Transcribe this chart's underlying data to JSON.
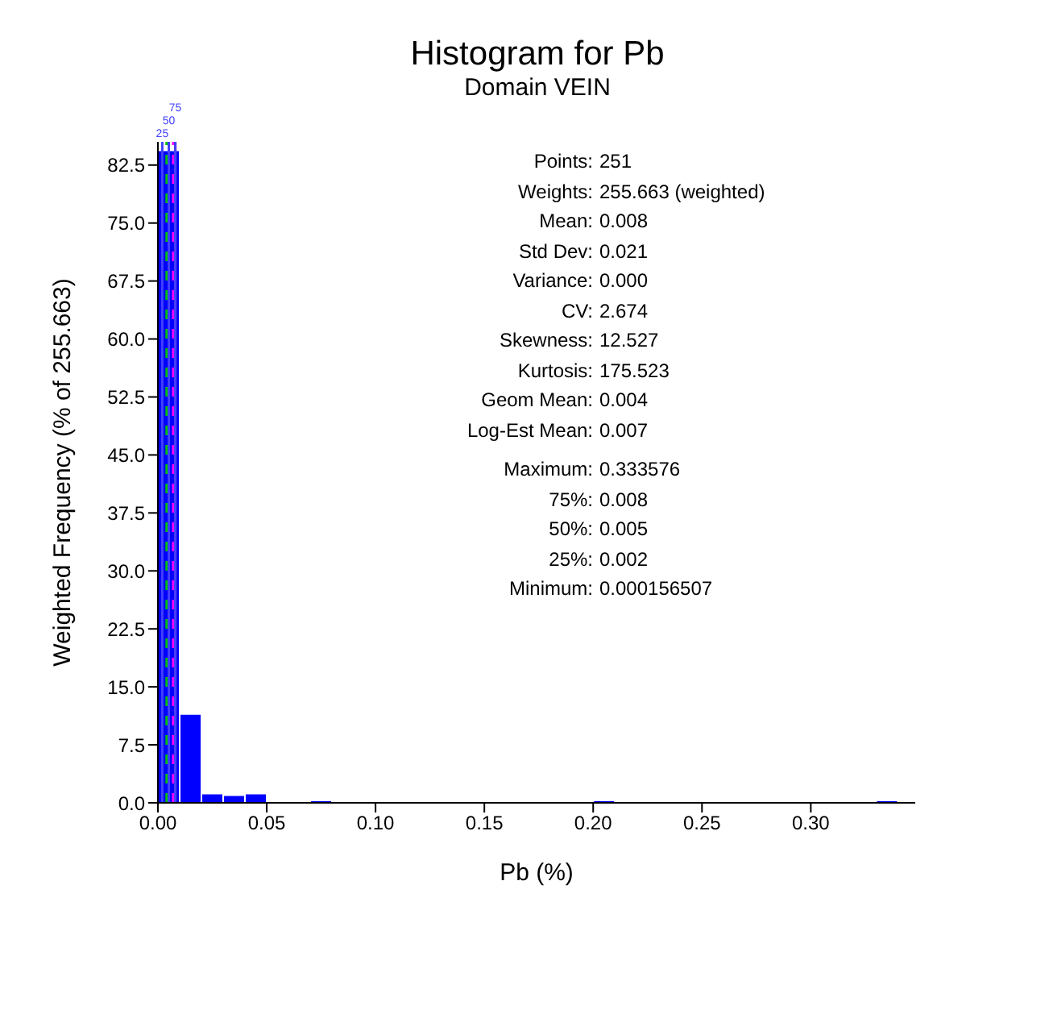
{
  "chart_data": {
    "type": "histogram",
    "title": "Histogram for Pb",
    "subtitle": "Domain VEIN",
    "xlabel": "Pb (%)",
    "ylabel": "Weighted Frequency (% of 255.663)",
    "bins": [
      0,
      0.01,
      0.02,
      0.03,
      0.04,
      0.05,
      0.06,
      0.07,
      0.08,
      0.09,
      0.1,
      0.11,
      0.12,
      0.13,
      0.14,
      0.15,
      0.16,
      0.17,
      0.18,
      0.19,
      0.2,
      0.21,
      0.22,
      0.23,
      0.24,
      0.25,
      0.26,
      0.27,
      0.28,
      0.29,
      0.3,
      0.31,
      0.32,
      0.33,
      0.34
    ],
    "values": [
      84.4,
      11.5,
      1.2,
      1.0,
      1.2,
      0,
      0,
      0.3,
      0,
      0,
      0,
      0,
      0,
      0,
      0,
      0,
      0,
      0,
      0,
      0,
      0.3,
      0,
      0,
      0,
      0,
      0,
      0,
      0,
      0,
      0,
      0,
      0,
      0,
      0.3
    ],
    "color": "#0000ff",
    "xlim": [
      0,
      0.348
    ],
    "ylim": [
      0,
      85.5
    ],
    "xticks": [
      {
        "value": 0,
        "label": "0.00"
      },
      {
        "value": 0.05,
        "label": "0.05"
      },
      {
        "value": 0.1,
        "label": "0.10"
      },
      {
        "value": 0.15,
        "label": "0.15"
      },
      {
        "value": 0.2,
        "label": "0.20"
      },
      {
        "value": 0.25,
        "label": "0.25"
      },
      {
        "value": 0.3,
        "label": "0.30"
      }
    ],
    "yticks": [
      {
        "value": 0,
        "label": "0.0"
      },
      {
        "value": 7.5,
        "label": "7.5"
      },
      {
        "value": 15,
        "label": "15.0"
      },
      {
        "value": 22.5,
        "label": "22.5"
      },
      {
        "value": 30,
        "label": "30.0"
      },
      {
        "value": 37.5,
        "label": "37.5"
      },
      {
        "value": 45,
        "label": "45.0"
      },
      {
        "value": 52.5,
        "label": "52.5"
      },
      {
        "value": 60,
        "label": "60.0"
      },
      {
        "value": 67.5,
        "label": "67.5"
      },
      {
        "value": 75,
        "label": "75.0"
      },
      {
        "value": 82.5,
        "label": "82.5"
      }
    ],
    "ref_lines": [
      {
        "axis": "x",
        "value": 0.008,
        "color": "#ff0000",
        "line_style": "solid"
      },
      {
        "axis": "x",
        "value": 0.004,
        "color": "#00c000",
        "line_style": "dashed"
      },
      {
        "axis": "x",
        "value": 0.007,
        "color": "#ff00ff",
        "line_style": "dashed"
      },
      {
        "axis": "x",
        "value": 0.002,
        "color": "#4040ff",
        "line_style": "solid"
      },
      {
        "axis": "x",
        "value": 0.005,
        "color": "#4040ff",
        "line_style": "solid"
      },
      {
        "axis": "x",
        "value": 0.008,
        "color": "#4040ff",
        "line_style": "solid"
      }
    ],
    "annotations": [
      "Points: 251",
      "Weights: 255.663 (weighted)",
      "Mean: 0.008",
      "Std Dev: 0.021",
      "Variance: 0.000",
      "CV: 2.674",
      "Skewness: 12.527",
      "Kurtosis: 175.523",
      "Geom Mean: 0.004",
      "Log-Est Mean: 0.007",
      "Maximum: 0.333576",
      "75%: 0.008",
      "50%: 0.005",
      "25%: 0.002",
      "Minimum: 0.000156507",
      {
        "text": "25",
        "x": 0.002,
        "y": 85.5
      },
      {
        "text": "50",
        "x": 0.005,
        "y": 85.5
      },
      {
        "text": "75",
        "x": 0.008,
        "y": 85.5
      }
    ]
  }
}
